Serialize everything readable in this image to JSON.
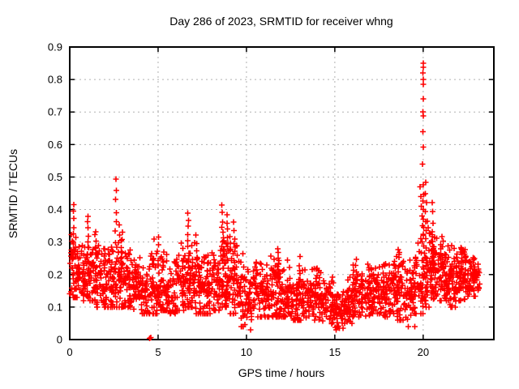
{
  "window": {
    "background": "#ffffff"
  },
  "chart_data": {
    "type": "scatter",
    "title": "Day 286 of 2023, SRMTID for receiver whng",
    "xlabel": "GPS time / hours",
    "ylabel": "SRMTID / TECUs",
    "xlim": [
      0,
      24
    ],
    "ylim": [
      0,
      0.9
    ],
    "xticks": [
      0,
      5,
      10,
      15,
      20
    ],
    "x_tick_labels": [
      "0",
      "5",
      "10",
      "15",
      "20"
    ],
    "yticks": [
      0,
      0.1,
      0.2,
      0.3,
      0.4,
      0.5,
      0.6,
      0.7,
      0.8,
      0.9
    ],
    "y_tick_labels": [
      "0",
      "0.1",
      "0.2",
      "0.3",
      "0.4",
      "0.5",
      "0.6",
      "0.7",
      "0.8",
      "0.9"
    ],
    "grid": true,
    "grid_style": "dashed",
    "grid_color": "#b0b0b0",
    "legend": "none",
    "series_name": "SRMTID",
    "marker": "plus",
    "marker_color": "#ff0000",
    "marker_size_px": 7,
    "data_start_hour": 0.0,
    "data_end_hour": 23.2,
    "y_max_observed": 0.85,
    "total_points_approx": 2400,
    "point_cloud": {
      "bin_format": [
        "x_start",
        "x_end",
        "y_min",
        "y_max",
        "y_center",
        "count"
      ],
      "bins": [
        [
          0.0,
          0.5,
          0.13,
          0.42,
          0.22,
          55
        ],
        [
          0.5,
          1.0,
          0.12,
          0.33,
          0.2,
          50
        ],
        [
          1.0,
          1.5,
          0.12,
          0.38,
          0.2,
          55
        ],
        [
          1.5,
          2.0,
          0.1,
          0.31,
          0.18,
          50
        ],
        [
          2.0,
          2.5,
          0.1,
          0.3,
          0.18,
          50
        ],
        [
          2.5,
          3.0,
          0.1,
          0.36,
          0.18,
          55
        ],
        [
          3.0,
          3.5,
          0.1,
          0.3,
          0.17,
          50
        ],
        [
          3.5,
          4.0,
          0.09,
          0.28,
          0.16,
          50
        ],
        [
          4.0,
          4.5,
          0.08,
          0.26,
          0.15,
          45
        ],
        [
          4.5,
          5.0,
          0.08,
          0.31,
          0.16,
          50
        ],
        [
          5.0,
          5.5,
          0.09,
          0.3,
          0.16,
          50
        ],
        [
          5.5,
          6.0,
          0.08,
          0.26,
          0.15,
          45
        ],
        [
          6.0,
          6.5,
          0.09,
          0.33,
          0.17,
          50
        ],
        [
          6.5,
          7.0,
          0.1,
          0.36,
          0.18,
          55
        ],
        [
          7.0,
          7.5,
          0.08,
          0.31,
          0.16,
          50
        ],
        [
          7.5,
          8.0,
          0.08,
          0.3,
          0.16,
          50
        ],
        [
          8.0,
          8.5,
          0.09,
          0.33,
          0.17,
          50
        ],
        [
          8.5,
          9.0,
          0.1,
          0.37,
          0.18,
          55
        ],
        [
          9.0,
          9.5,
          0.08,
          0.33,
          0.16,
          50
        ],
        [
          9.5,
          10.0,
          0.04,
          0.28,
          0.13,
          45
        ],
        [
          10.0,
          10.5,
          0.03,
          0.24,
          0.12,
          45
        ],
        [
          10.5,
          11.0,
          0.07,
          0.26,
          0.14,
          45
        ],
        [
          11.0,
          11.5,
          0.07,
          0.26,
          0.14,
          45
        ],
        [
          11.5,
          12.0,
          0.07,
          0.29,
          0.15,
          50
        ],
        [
          12.0,
          12.5,
          0.07,
          0.25,
          0.13,
          45
        ],
        [
          12.5,
          13.0,
          0.06,
          0.22,
          0.12,
          45
        ],
        [
          13.0,
          13.5,
          0.06,
          0.24,
          0.13,
          45
        ],
        [
          13.5,
          14.0,
          0.06,
          0.25,
          0.13,
          45
        ],
        [
          14.0,
          14.5,
          0.05,
          0.22,
          0.12,
          45
        ],
        [
          14.5,
          15.0,
          0.04,
          0.2,
          0.1,
          45
        ],
        [
          15.0,
          15.5,
          0.03,
          0.18,
          0.09,
          45
        ],
        [
          15.5,
          16.0,
          0.05,
          0.22,
          0.11,
          45
        ],
        [
          16.0,
          16.5,
          0.07,
          0.25,
          0.13,
          45
        ],
        [
          16.5,
          17.0,
          0.07,
          0.24,
          0.14,
          45
        ],
        [
          17.0,
          17.5,
          0.08,
          0.26,
          0.15,
          50
        ],
        [
          17.5,
          18.0,
          0.07,
          0.26,
          0.14,
          50
        ],
        [
          18.0,
          18.5,
          0.08,
          0.28,
          0.15,
          50
        ],
        [
          18.5,
          19.0,
          0.06,
          0.28,
          0.15,
          50
        ],
        [
          19.0,
          19.5,
          0.04,
          0.25,
          0.13,
          45
        ],
        [
          19.5,
          20.0,
          0.08,
          0.31,
          0.16,
          50
        ],
        [
          20.0,
          20.5,
          0.1,
          0.42,
          0.22,
          60
        ],
        [
          20.5,
          21.0,
          0.12,
          0.35,
          0.22,
          60
        ],
        [
          21.0,
          21.5,
          0.12,
          0.32,
          0.2,
          55
        ],
        [
          21.5,
          22.0,
          0.1,
          0.3,
          0.18,
          55
        ],
        [
          22.0,
          22.5,
          0.12,
          0.29,
          0.19,
          55
        ],
        [
          22.5,
          23.0,
          0.13,
          0.27,
          0.19,
          50
        ],
        [
          23.0,
          23.2,
          0.14,
          0.24,
          0.18,
          15
        ]
      ],
      "streak_format": [
        "x",
        "y_min",
        "y_max",
        "count"
      ],
      "streaks": [
        [
          0.2,
          0.25,
          0.42,
          8
        ],
        [
          1.05,
          0.22,
          0.38,
          9
        ],
        [
          2.62,
          0.3,
          0.49,
          7
        ],
        [
          2.8,
          0.22,
          0.35,
          6
        ],
        [
          5.0,
          0.2,
          0.31,
          6
        ],
        [
          6.7,
          0.22,
          0.39,
          9
        ],
        [
          7.15,
          0.2,
          0.32,
          6
        ],
        [
          8.65,
          0.24,
          0.41,
          9
        ],
        [
          8.9,
          0.24,
          0.38,
          8
        ],
        [
          9.3,
          0.22,
          0.36,
          7
        ],
        [
          11.8,
          0.2,
          0.28,
          7
        ],
        [
          13.0,
          0.18,
          0.25,
          5
        ],
        [
          16.2,
          0.16,
          0.25,
          5
        ],
        [
          18.6,
          0.18,
          0.28,
          5
        ],
        [
          20.15,
          0.28,
          0.48,
          8
        ],
        [
          20.55,
          0.25,
          0.42,
          7
        ],
        [
          21.1,
          0.22,
          0.32,
          6
        ],
        [
          22.4,
          0.18,
          0.28,
          6
        ]
      ],
      "spike": {
        "x": 20.0,
        "values": [
          0.85,
          0.838,
          0.82,
          0.8,
          0.785,
          0.74,
          0.7,
          0.688,
          0.64,
          0.592,
          0.54,
          0.476,
          0.446,
          0.426,
          0.4,
          0.37,
          0.345,
          0.32
        ]
      },
      "spike_trail": [
        [
          19.82,
          0.47
        ],
        [
          19.87,
          0.44
        ],
        [
          19.9,
          0.41
        ],
        [
          19.93,
          0.38
        ],
        [
          19.96,
          0.35
        ],
        [
          19.88,
          0.31
        ],
        [
          19.95,
          0.3
        ]
      ],
      "outliers": [
        [
          4.52,
          0.004
        ],
        [
          4.6,
          0.006
        ],
        [
          19.53,
          0.04
        ]
      ]
    }
  }
}
